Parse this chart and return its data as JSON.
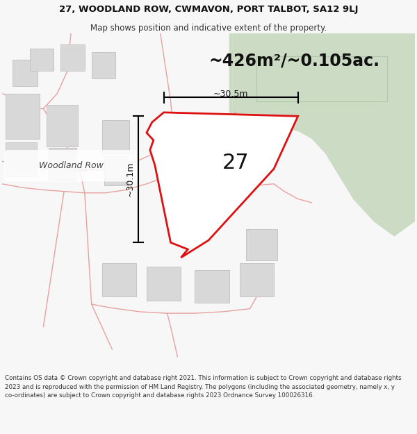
{
  "title_line1": "27, WOODLAND ROW, CWMAVON, PORT TALBOT, SA12 9LJ",
  "title_line2": "Map shows position and indicative extent of the property.",
  "area_text": "~426m²/~0.105ac.",
  "label_27": "27",
  "dim_vertical": "~30.1m",
  "dim_horizontal": "~30.5m",
  "street_label": "Woodland Row",
  "footer_text": "Contains OS data © Crown copyright and database right 2021. This information is subject to Crown copyright and database rights 2023 and is reproduced with the permission of HM Land Registry. The polygons (including the associated geometry, namely x, y co-ordinates) are subject to Crown copyright and database rights 2023 Ordnance Survey 100026316.",
  "bg_color": "#f7f7f7",
  "map_bg": "#ffffff",
  "green_area_color": "#ccdbc4",
  "red_line_color": "#dd1111",
  "road_color": "#e8a0a0",
  "building_fill": "#d8d8d8",
  "building_edge": "#c0c0c0",
  "property_fill": "#ffffff",
  "title_fontsize": 9.5,
  "subtitle_fontsize": 8.5,
  "area_fontsize": 17,
  "label_fontsize": 22,
  "dim_fontsize": 9,
  "street_fontsize": 9,
  "footer_fontsize": 6.3
}
